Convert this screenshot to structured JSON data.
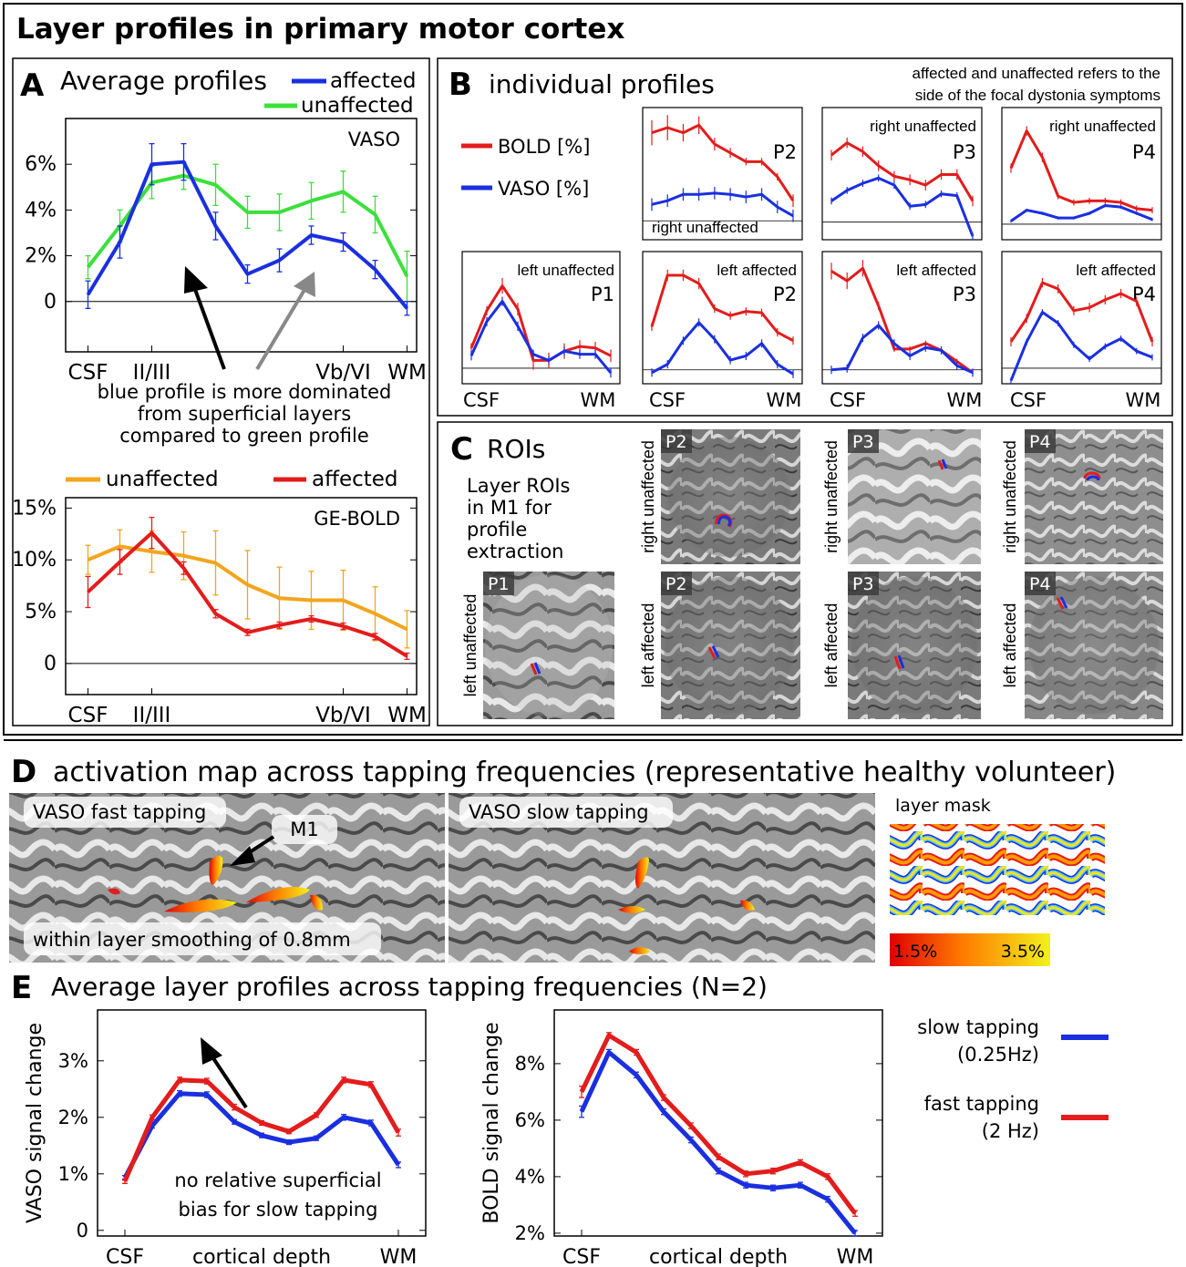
{
  "title": "Layer profiles in primary motor cortex",
  "colors": {
    "blue": "#1a2fe0",
    "green": "#3be03b",
    "red": "#e31c1c",
    "orange": "#f3a51c",
    "black": "#000000"
  },
  "panelA": {
    "letter": "A",
    "title": "Average profiles",
    "legend_affected": "affected",
    "legend_unaffected": "unaffected",
    "annotation": [
      "blue profile is more dominated",
      "from superficial layers",
      "compared to green profile"
    ],
    "legend2_unaffected": "unaffected",
    "legend2_affected": "affected"
  },
  "panelB": {
    "letter": "B",
    "title": "individual profiles",
    "note": [
      "affected and unaffected refers to the",
      "side of the focal dystonia symptoms"
    ],
    "legend_bold": "BOLD [%]",
    "legend_vaso": "VASO [%]",
    "xstart": "CSF",
    "xend": "WM"
  },
  "panelC": {
    "letter": "C",
    "title": "ROIs",
    "desc": [
      "Layer ROIs",
      "in  M1 for",
      "profile",
      "extraction"
    ],
    "rois": [
      {
        "label": "P2",
        "side": "right unaffected"
      },
      {
        "label": "P3",
        "side": "right unaffected"
      },
      {
        "label": "P4",
        "side": "right unaffected"
      },
      {
        "label": "P1",
        "side": "left unaffected"
      },
      {
        "label": "P2",
        "side": "left affected"
      },
      {
        "label": "P3",
        "side": "left affected"
      },
      {
        "label": "P4",
        "side": "left affected"
      }
    ]
  },
  "panelD": {
    "letter": "D",
    "title": "activation map across tapping frequencies (representative healthy volunteer)",
    "label_fast": "VASO fast tapping",
    "label_slow": "VASO slow tapping",
    "label_m1": "M1",
    "label_smoothing": "within layer smoothing of 0.8mm",
    "label_mask": "layer mask",
    "colorbar_min": "1.5%",
    "colorbar_max": "3.5%"
  },
  "panelE": {
    "letter": "E",
    "title": "Average layer profiles across tapping frequencies (N=2)",
    "annotation": [
      "no relative superficial",
      "bias for slow tapping"
    ],
    "legend_slow": [
      "slow tapping",
      "(0.25Hz)"
    ],
    "legend_fast": [
      "fast tapping",
      "(2 Hz)"
    ]
  },
  "chart_data": [
    {
      "id": "A_vaso",
      "type": "line",
      "title": "VASO",
      "x": [
        1,
        2,
        3,
        4,
        5,
        6,
        7,
        8,
        9,
        10,
        11
      ],
      "xticklabels": {
        "1": "CSF",
        "3": "II/III",
        "9": "Vb/VI",
        "11": "WM"
      },
      "xlim": [
        0.3,
        11.3
      ],
      "ylim": [
        -2.2,
        8.0
      ],
      "yticks": [
        0,
        2,
        4,
        6
      ],
      "yticklabels": [
        "0",
        "2%",
        "4%",
        "6%"
      ],
      "series": [
        {
          "name": "unaffected",
          "color": "green",
          "values": [
            1.5,
            3.3,
            5.2,
            5.5,
            5.1,
            3.9,
            3.9,
            4.4,
            4.8,
            3.8,
            1.1
          ],
          "err": [
            0.5,
            0.7,
            0.7,
            0.6,
            0.9,
            0.7,
            0.8,
            0.8,
            0.9,
            0.8,
            1.1
          ]
        },
        {
          "name": "affected",
          "color": "blue",
          "values": [
            0.3,
            2.6,
            6.0,
            6.1,
            3.3,
            1.2,
            1.8,
            2.9,
            2.6,
            1.4,
            -0.3
          ],
          "err": [
            0.6,
            0.7,
            0.9,
            0.8,
            0.6,
            0.4,
            0.5,
            0.4,
            0.4,
            0.4,
            0.3
          ]
        }
      ]
    },
    {
      "id": "A_bold",
      "type": "line",
      "title": "GE-BOLD",
      "x": [
        1,
        2,
        3,
        4,
        5,
        6,
        7,
        8,
        9,
        10,
        11
      ],
      "xticklabels": {
        "1": "CSF",
        "3": "II/III",
        "9": "Vb/VI",
        "11": "WM"
      },
      "xlim": [
        0.3,
        11.3
      ],
      "ylim": [
        -3.0,
        16.0
      ],
      "yticks": [
        0,
        5,
        10,
        15
      ],
      "yticklabels": [
        "0",
        "5%",
        "10%",
        "15%"
      ],
      "series": [
        {
          "name": "unaffected",
          "color": "orange",
          "values": [
            10.0,
            11.3,
            10.8,
            10.4,
            9.7,
            7.6,
            6.3,
            6.1,
            6.1,
            4.8,
            3.3
          ],
          "err": [
            1.4,
            1.6,
            2.0,
            2.3,
            3.1,
            3.3,
            3.0,
            2.8,
            2.9,
            2.6,
            1.8
          ]
        },
        {
          "name": "affected",
          "color": "red",
          "values": [
            6.9,
            9.8,
            12.6,
            9.2,
            4.8,
            3.0,
            3.7,
            4.3,
            3.6,
            2.6,
            0.7
          ],
          "err": [
            1.5,
            1.2,
            1.5,
            0.6,
            0.4,
            0.3,
            0.3,
            0.3,
            0.3,
            0.3,
            0.3
          ]
        }
      ]
    },
    {
      "id": "B_P2_right",
      "type": "line",
      "label": "P2",
      "sublabel": "right unaffected",
      "ylim": [
        -1.5,
        9.0
      ],
      "series": [
        {
          "name": "BOLD",
          "color": "red",
          "values": [
            7.0,
            7.4,
            7.0,
            7.6,
            6.1,
            5.4,
            4.7,
            4.7,
            3.5,
            1.6
          ],
          "err": [
            1.0,
            1.0,
            0.7,
            0.7,
            0.5,
            0.4,
            0.3,
            0.3,
            0.3,
            0.5
          ]
        },
        {
          "name": "VASO",
          "color": "blue",
          "values": [
            1.3,
            1.6,
            2.1,
            2.1,
            2.2,
            2.1,
            1.9,
            2.1,
            1.1,
            0.4
          ],
          "err": [
            0.5,
            0.5,
            0.5,
            0.5,
            0.5,
            0.5,
            0.5,
            0.5,
            0.5,
            0.5
          ]
        }
      ]
    },
    {
      "id": "B_P3_right",
      "type": "line",
      "label": "P3",
      "sublabel": "right unaffected",
      "ylim": [
        -1.0,
        6.5
      ],
      "series": [
        {
          "name": "BOLD",
          "color": "red",
          "values": [
            3.8,
            4.5,
            4.0,
            3.2,
            2.6,
            2.4,
            2.1,
            2.7,
            2.7,
            1.2
          ],
          "err": [
            0.3,
            0.3,
            0.3,
            0.3,
            0.3,
            0.3,
            0.3,
            0.3,
            0.3,
            0.3
          ]
        },
        {
          "name": "VASO",
          "color": "blue",
          "values": [
            1.2,
            1.8,
            2.2,
            2.5,
            2.1,
            0.9,
            1.0,
            1.6,
            1.5,
            -0.8
          ],
          "err": [
            0.2,
            0.2,
            0.2,
            0.2,
            0.2,
            0.2,
            0.2,
            0.2,
            0.2,
            0.2
          ]
        }
      ]
    },
    {
      "id": "B_P4_right",
      "type": "line",
      "label": "P4",
      "sublabel": "right unaffected",
      "ylim": [
        -1.0,
        7.5
      ],
      "series": [
        {
          "name": "BOLD",
          "color": "red",
          "values": [
            3.6,
            6.0,
            4.3,
            1.8,
            1.4,
            1.5,
            1.5,
            1.4,
            1.0,
            0.9
          ],
          "err": [
            0.3,
            0.3,
            0.3,
            0.2,
            0.2,
            0.2,
            0.2,
            0.2,
            0.2,
            0.2
          ]
        },
        {
          "name": "VASO",
          "color": "blue",
          "values": [
            0.2,
            0.9,
            0.7,
            0.4,
            0.4,
            0.7,
            1.2,
            1.1,
            0.7,
            0.3
          ],
          "err": [
            0.1,
            0.1,
            0.1,
            0.1,
            0.1,
            0.1,
            0.1,
            0.1,
            0.1,
            0.1
          ]
        }
      ]
    },
    {
      "id": "B_P1_left",
      "type": "line",
      "label": "P1",
      "sublabel": "left unaffected",
      "ylim": [
        -1.0,
        7.5
      ],
      "series": [
        {
          "name": "BOLD",
          "color": "red",
          "values": [
            1.3,
            3.7,
            5.3,
            3.8,
            0.5,
            0.5,
            1.1,
            1.4,
            1.3,
            0.8
          ],
          "err": [
            0.3,
            0.3,
            0.5,
            0.4,
            0.6,
            0.5,
            0.5,
            0.4,
            0.4,
            0.4
          ]
        },
        {
          "name": "VASO",
          "color": "blue",
          "values": [
            0.8,
            3.0,
            4.3,
            2.7,
            0.9,
            0.5,
            1.1,
            0.9,
            0.9,
            -0.3
          ],
          "err": [
            0.3,
            0.3,
            0.3,
            0.3,
            0.3,
            0.3,
            0.3,
            0.3,
            0.3,
            0.3
          ]
        }
      ]
    },
    {
      "id": "B_P2_left",
      "type": "line",
      "label": "P2",
      "sublabel": "left affected",
      "ylim": [
        -1.0,
        8.5
      ],
      "series": [
        {
          "name": "BOLD",
          "color": "red",
          "values": [
            3.1,
            6.8,
            6.8,
            6.2,
            4.4,
            3.9,
            4.2,
            4.1,
            2.7,
            2.1
          ],
          "err": [
            0.3,
            0.4,
            0.4,
            0.4,
            0.3,
            0.3,
            0.3,
            0.3,
            0.3,
            0.3
          ]
        },
        {
          "name": "VASO",
          "color": "blue",
          "values": [
            -0.2,
            0.4,
            2.1,
            3.4,
            2.2,
            0.7,
            1.0,
            1.9,
            0.4,
            -0.3
          ],
          "err": [
            0.3,
            0.3,
            0.3,
            0.3,
            0.3,
            0.3,
            0.3,
            0.3,
            0.3,
            0.3
          ]
        }
      ]
    },
    {
      "id": "B_P3_left",
      "type": "line",
      "label": "P3",
      "sublabel": "left affected",
      "ylim": [
        -1.0,
        8.5
      ],
      "series": [
        {
          "name": "BOLD",
          "color": "red",
          "values": [
            7.1,
            6.4,
            7.3,
            4.6,
            1.5,
            1.5,
            1.9,
            1.4,
            0.6,
            -0.2
          ],
          "err": [
            0.6,
            0.6,
            0.6,
            0.3,
            0.2,
            0.2,
            0.2,
            0.2,
            0.2,
            0.2
          ]
        },
        {
          "name": "VASO",
          "color": "blue",
          "values": [
            0.0,
            0.1,
            2.3,
            3.2,
            1.9,
            1.0,
            1.6,
            1.4,
            0.3,
            -0.2
          ],
          "err": [
            0.3,
            0.3,
            0.3,
            0.3,
            0.3,
            0.3,
            0.3,
            0.3,
            0.3,
            0.3
          ]
        }
      ]
    },
    {
      "id": "B_P4_left",
      "type": "line",
      "label": "P4",
      "sublabel": "left affected",
      "ylim": [
        -1.0,
        7.5
      ],
      "series": [
        {
          "name": "BOLD",
          "color": "red",
          "values": [
            1.7,
            3.2,
            5.5,
            5.1,
            3.7,
            3.9,
            4.4,
            4.8,
            4.3,
            1.7
          ],
          "err": [
            0.3,
            0.3,
            0.3,
            0.3,
            0.3,
            0.3,
            0.3,
            0.3,
            0.3,
            0.3
          ]
        },
        {
          "name": "VASO",
          "color": "blue",
          "values": [
            -0.8,
            1.7,
            3.6,
            2.9,
            1.5,
            0.6,
            1.4,
            1.9,
            1.1,
            0.7
          ],
          "err": [
            0.2,
            0.2,
            0.2,
            0.2,
            0.2,
            0.2,
            0.2,
            0.2,
            0.2,
            0.2
          ]
        }
      ]
    },
    {
      "id": "E_vaso",
      "type": "line",
      "xlabel": "cortical depth",
      "ylabel": "VASO signal change",
      "x": [
        1,
        2,
        3,
        4,
        5,
        6,
        7,
        8,
        9,
        10,
        11
      ],
      "xticklabels": {
        "1": "CSF",
        "11": "WM"
      },
      "xlim": [
        0.0,
        12.0
      ],
      "ylim": [
        -0.1,
        3.9
      ],
      "yticks": [
        0,
        1,
        2,
        3
      ],
      "yticklabels": [
        "0",
        "1%",
        "2%",
        "3%"
      ],
      "series": [
        {
          "name": "slow tapping (0.25Hz)",
          "color": "blue",
          "values": [
            0.93,
            1.85,
            2.42,
            2.4,
            1.92,
            1.68,
            1.56,
            1.63,
            2.0,
            1.9,
            1.16
          ],
          "err": [
            0.04,
            0.04,
            0.05,
            0.05,
            0.04,
            0.04,
            0.04,
            0.04,
            0.05,
            0.05,
            0.05
          ]
        },
        {
          "name": "fast tapping (2 Hz)",
          "color": "red",
          "values": [
            0.87,
            2.0,
            2.66,
            2.64,
            2.18,
            1.9,
            1.75,
            2.04,
            2.66,
            2.58,
            1.73
          ],
          "err": [
            0.04,
            0.04,
            0.05,
            0.05,
            0.05,
            0.04,
            0.04,
            0.04,
            0.05,
            0.05,
            0.06
          ]
        }
      ]
    },
    {
      "id": "E_bold",
      "type": "line",
      "xlabel": "cortical depth",
      "ylabel": "BOLD signal change",
      "x": [
        1,
        2,
        3,
        4,
        5,
        6,
        7,
        8,
        9,
        10,
        11
      ],
      "xticklabels": {
        "1": "CSF",
        "11": "WM"
      },
      "xlim": [
        0.0,
        12.0
      ],
      "ylim": [
        1.9,
        9.9
      ],
      "yticks": [
        2,
        4,
        6,
        8
      ],
      "yticklabels": [
        "2%",
        "4%",
        "6%",
        "8%"
      ],
      "series": [
        {
          "name": "slow tapping (0.25Hz)",
          "color": "blue",
          "values": [
            6.3,
            8.4,
            7.6,
            6.3,
            5.3,
            4.2,
            3.7,
            3.6,
            3.7,
            3.2,
            2.0
          ],
          "err": [
            0.2,
            0.1,
            0.1,
            0.1,
            0.1,
            0.1,
            0.1,
            0.1,
            0.1,
            0.1,
            0.1
          ]
        },
        {
          "name": "fast tapping (2 Hz)",
          "color": "red",
          "values": [
            7.0,
            9.0,
            8.4,
            6.8,
            5.8,
            4.7,
            4.1,
            4.2,
            4.5,
            4.0,
            2.7
          ],
          "err": [
            0.2,
            0.1,
            0.1,
            0.1,
            0.1,
            0.1,
            0.1,
            0.1,
            0.1,
            0.1,
            0.1
          ]
        }
      ]
    }
  ]
}
